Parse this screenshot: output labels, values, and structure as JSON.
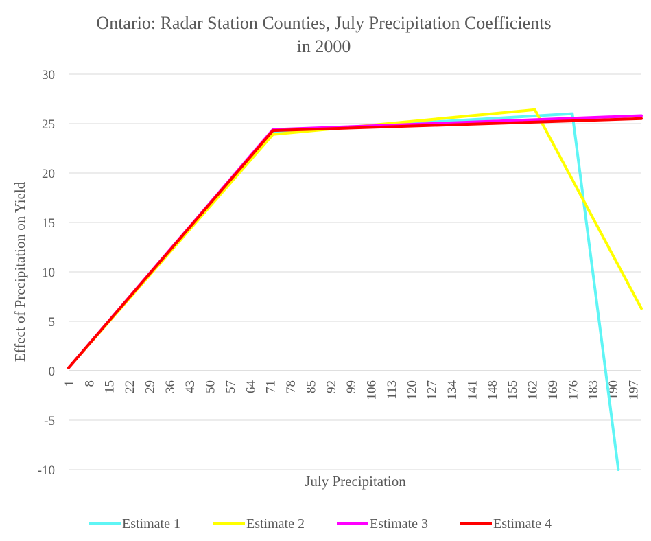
{
  "chart_data": {
    "type": "line",
    "title_lines": [
      "Ontario: Radar Station Counties, July Precipitation Coefficients",
      "in 2000"
    ],
    "xlabel": "July Precipitation",
    "ylabel": "Effect of Precipitation on Yield",
    "ylim": [
      -10,
      30
    ],
    "yticks": [
      30,
      25,
      20,
      15,
      10,
      5,
      0,
      -5,
      -10
    ],
    "xlim": [
      1,
      200
    ],
    "xticks": [
      "1",
      "8",
      "15",
      "22",
      "29",
      "36",
      "43",
      "50",
      "57",
      "64",
      "71",
      "78",
      "85",
      "92",
      "99",
      "106",
      "113",
      "120",
      "127",
      "134",
      "141",
      "148",
      "155",
      "162",
      "169",
      "176",
      "183",
      "190",
      "197"
    ],
    "grid": "horizontal",
    "legend_position": "bottom",
    "series": [
      {
        "name": "Estimate 1",
        "color": "#5ff5f5",
        "points": [
          [
            1,
            0.3
          ],
          [
            72,
            24.2
          ],
          [
            176,
            26.0
          ],
          [
            192,
            -10
          ]
        ]
      },
      {
        "name": "Estimate 2",
        "color": "#ffff00",
        "points": [
          [
            1,
            0.3
          ],
          [
            72,
            23.9
          ],
          [
            163,
            26.4
          ],
          [
            200,
            6.3
          ]
        ]
      },
      {
        "name": "Estimate 3",
        "color": "#ff00ff",
        "points": [
          [
            1,
            0.3
          ],
          [
            72,
            24.4
          ],
          [
            200,
            25.8
          ]
        ]
      },
      {
        "name": "Estimate 4",
        "color": "#ff0000",
        "points": [
          [
            1,
            0.3
          ],
          [
            72,
            24.3
          ],
          [
            200,
            25.5
          ]
        ]
      }
    ]
  }
}
